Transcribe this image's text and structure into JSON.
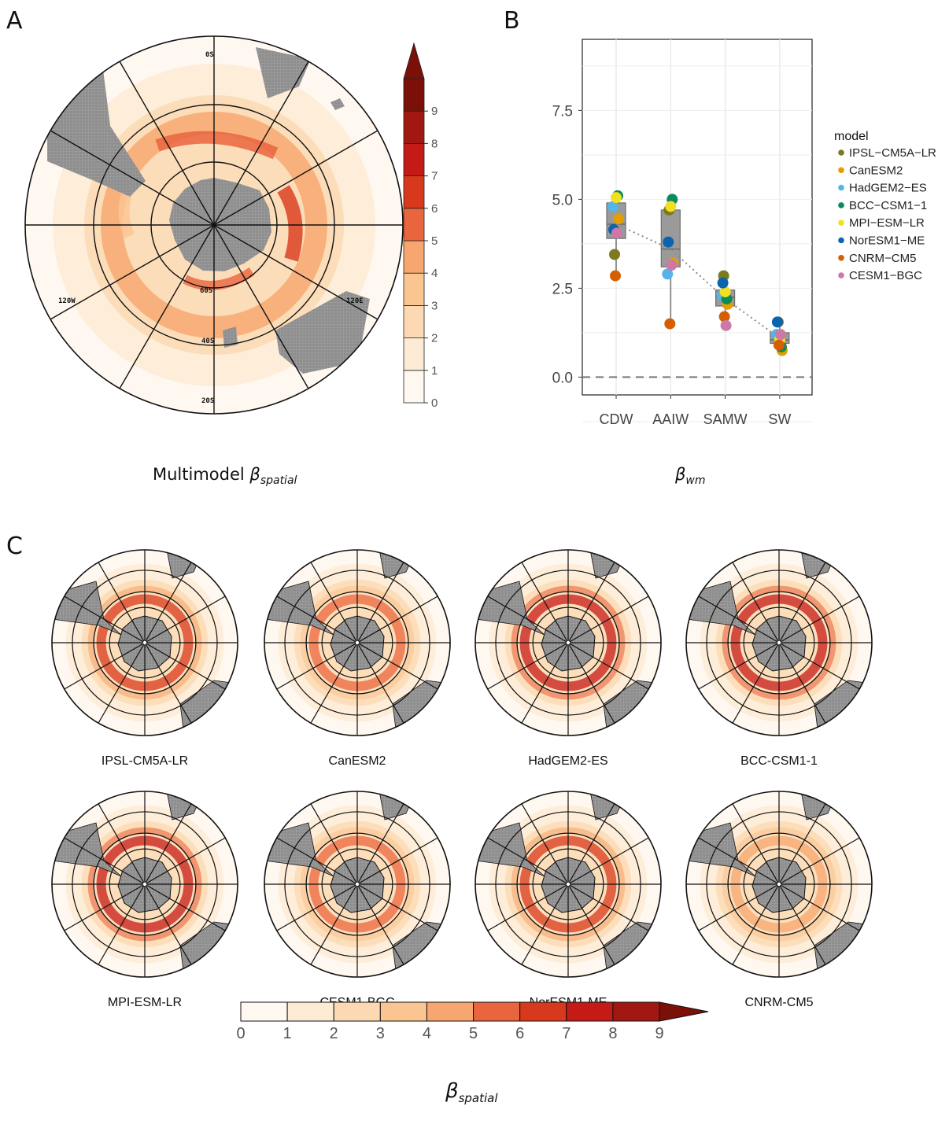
{
  "panels": {
    "a_letter": "A",
    "b_letter": "B",
    "c_letter": "C"
  },
  "panel_a": {
    "caption_main": "Multimodel ",
    "caption_symbol": "β",
    "caption_sub": "spatial",
    "lat_labels": [
      "0S",
      "60S",
      "40S",
      "20S"
    ],
    "lon_labels": [
      "120W",
      "120E"
    ],
    "colorbar_ticks": [
      "0",
      "1",
      "2",
      "3",
      "4",
      "5",
      "6",
      "7",
      "8",
      "9"
    ]
  },
  "panel_c": {
    "caption_symbol": "β",
    "caption_sub": "spatial",
    "colorbar_ticks": [
      "0",
      "1",
      "2",
      "3",
      "4",
      "5",
      "6",
      "7",
      "8",
      "9"
    ],
    "maps": [
      {
        "name": "IPSL-CM5A-LR"
      },
      {
        "name": "CanESM2"
      },
      {
        "name": "HadGEM2-ES"
      },
      {
        "name": "BCC-CSM1-1"
      },
      {
        "name": "MPI-ESM-LR"
      },
      {
        "name": "CESM1-BGC"
      },
      {
        "name": "NorESM1-ME"
      },
      {
        "name": "CNRM-CM5"
      }
    ]
  },
  "colors": {
    "scale": [
      "#fff8f0",
      "#fdebd6",
      "#fcd9b3",
      "#fbc592",
      "#f6a66e",
      "#e9653e",
      "#d8381c",
      "#c41b16",
      "#a01811",
      "#7b1008"
    ],
    "land": "#8c8c8c",
    "panel_b_box": "#9a9a9a"
  },
  "chart_data": {
    "type": "scatter",
    "categories": [
      "CDW",
      "AAIW",
      "SAMW",
      "SW"
    ],
    "ylim": [
      -0.5,
      9.5
    ],
    "yticks": [
      "0.0",
      "2.5",
      "5.0",
      "7.5"
    ],
    "ytick_values": [
      0.0,
      2.5,
      5.0,
      7.5
    ],
    "xlabel_symbol": "β",
    "xlabel_sub": "wm",
    "legend_title": "model",
    "legend_position": "right",
    "reference_line_y": 0.0,
    "boxes": [
      {
        "category": "CDW",
        "q1": 3.9,
        "median": 4.3,
        "q3": 4.9,
        "min": 2.9,
        "max": 5.1
      },
      {
        "category": "AAIW",
        "q1": 3.1,
        "median": 3.6,
        "q3": 4.7,
        "min": 1.5,
        "max": 5.0
      },
      {
        "category": "SAMW",
        "q1": 2.0,
        "median": 2.25,
        "q3": 2.45,
        "min": 1.45,
        "max": 2.85
      },
      {
        "category": "SW",
        "q1": 0.95,
        "median": 1.05,
        "q3": 1.25,
        "min": 0.75,
        "max": 1.55
      }
    ],
    "mean_line": [
      4.3,
      3.6,
      2.2,
      1.1
    ],
    "series": [
      {
        "name": "IPSL−CM5A−LR",
        "color": "#7b7a1e",
        "values": [
          3.45,
          4.7,
          2.85,
          1.55
        ]
      },
      {
        "name": "CanESM2",
        "color": "#e39e00",
        "values": [
          4.45,
          3.2,
          2.05,
          0.75
        ]
      },
      {
        "name": "HadGEM2−ES",
        "color": "#56b4e9",
        "values": [
          4.8,
          2.9,
          2.3,
          1.2
        ]
      },
      {
        "name": "BCC−CSM1−1",
        "color": "#0b8a5a",
        "values": [
          5.1,
          5.0,
          2.2,
          0.85
        ]
      },
      {
        "name": "MPI−ESM−LR",
        "color": "#f0e020",
        "values": [
          5.05,
          4.8,
          2.4,
          1.05
        ]
      },
      {
        "name": "NorESM1−ME",
        "color": "#0a64b0",
        "values": [
          4.15,
          3.8,
          2.65,
          1.55
        ]
      },
      {
        "name": "CNRM−CM5",
        "color": "#d55e00",
        "values": [
          2.85,
          1.5,
          1.7,
          0.9
        ]
      },
      {
        "name": "CESM1−BGC",
        "color": "#cc79a7",
        "values": [
          4.05,
          3.15,
          1.45,
          1.2
        ]
      }
    ]
  }
}
